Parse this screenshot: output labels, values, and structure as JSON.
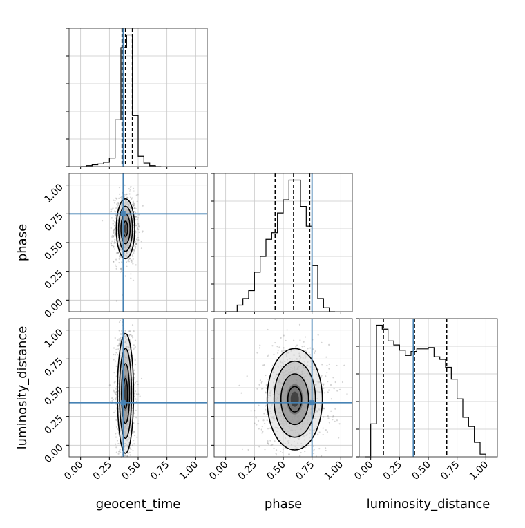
{
  "chart_data": {
    "type": "corner",
    "parameters": [
      "geocent_time",
      "phase",
      "luminosity_distance"
    ],
    "axis_range": [
      -0.1,
      1.1
    ],
    "ticks": [
      0.0,
      0.25,
      0.5,
      0.75,
      1.0
    ],
    "tick_labels": [
      "0.00",
      "0.25",
      "0.50",
      "0.75",
      "1.00"
    ],
    "grid": true,
    "truth_color": "#4682b4",
    "truths": {
      "geocent_time": 0.37,
      "phase": 0.75,
      "luminosity_distance": 0.37
    },
    "quantiles": {
      "geocent_time": [
        0.36,
        0.39,
        0.45
      ],
      "phase": [
        0.43,
        0.59,
        0.73
      ],
      "luminosity_distance": [
        0.11,
        0.38,
        0.66
      ]
    },
    "histograms": {
      "geocent_time": {
        "bin_edges": [
          0.0,
          0.05,
          0.1,
          0.15,
          0.2,
          0.25,
          0.3,
          0.35,
          0.4,
          0.45,
          0.5,
          0.55,
          0.6,
          0.65,
          0.7
        ],
        "counts": [
          0,
          1,
          2,
          3,
          5,
          10,
          55,
          140,
          155,
          60,
          12,
          4,
          1,
          0
        ]
      },
      "phase": {
        "bin_edges": [
          0.0,
          0.05,
          0.1,
          0.15,
          0.2,
          0.25,
          0.3,
          0.35,
          0.4,
          0.45,
          0.5,
          0.55,
          0.6,
          0.65,
          0.7,
          0.75,
          0.8,
          0.85,
          0.9,
          0.95
        ],
        "counts": [
          0,
          0,
          5,
          10,
          16,
          30,
          42,
          55,
          60,
          75,
          85,
          100,
          100,
          80,
          65,
          35,
          10,
          3,
          0
        ]
      },
      "luminosity_distance": {
        "bin_edges": [
          -0.05,
          0.0,
          0.05,
          0.1,
          0.15,
          0.2,
          0.25,
          0.3,
          0.35,
          0.4,
          0.45,
          0.5,
          0.55,
          0.6,
          0.65,
          0.7,
          0.75,
          0.8,
          0.85,
          0.9,
          0.95,
          1.0
        ],
        "counts": [
          0,
          25,
          100,
          97,
          88,
          85,
          81,
          77,
          80,
          82,
          82,
          83,
          76,
          74,
          68,
          59,
          44,
          30,
          23,
          11,
          2
        ]
      }
    },
    "panels_2d": [
      {
        "x": "geocent_time",
        "y": "phase",
        "peak": [
          0.39,
          0.62
        ],
        "sigma": [
          0.04,
          0.13
        ]
      },
      {
        "x": "geocent_time",
        "y": "luminosity_distance",
        "peak": [
          0.39,
          0.45
        ],
        "sigma": [
          0.035,
          0.26
        ]
      },
      {
        "x": "phase",
        "y": "luminosity_distance",
        "peak": [
          0.6,
          0.4
        ],
        "sigma": [
          0.12,
          0.22
        ]
      }
    ],
    "xlabels": [
      "geocent_time",
      "phase",
      "luminosity_distance"
    ],
    "ylabels": [
      "phase",
      "luminosity_distance"
    ]
  }
}
